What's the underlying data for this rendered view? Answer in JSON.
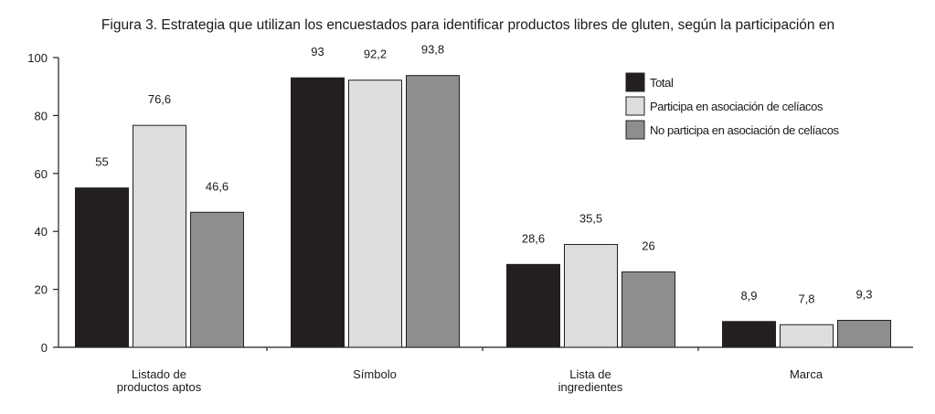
{
  "chart_data": {
    "type": "bar",
    "title": "Figura 3. Estrategia que utilizan los encuestados para identificar productos libres de gluten, según la participación en",
    "categories": [
      [
        "Listado de",
        "productos aptos"
      ],
      [
        "Símbolo"
      ],
      [
        "Lista de",
        "ingredientes"
      ],
      [
        "Marca"
      ]
    ],
    "series": [
      {
        "name": "Total",
        "color": "#231f20",
        "values": [
          55,
          93,
          28.6,
          8.9
        ],
        "labels": [
          "55",
          "93",
          "28,6",
          "8,9"
        ]
      },
      {
        "name": "Participa en asociación de celíacos",
        "color": "#dcdddf",
        "values": [
          76.6,
          92.2,
          35.5,
          7.8
        ],
        "labels": [
          "76,6",
          "92,2",
          "35,5",
          "7,8"
        ]
      },
      {
        "name": "No participa en asociación de celíacos",
        "color": "#8e8e90",
        "values": [
          46.6,
          93.8,
          26,
          9.3
        ],
        "labels": [
          "46,6",
          "93,8",
          "26",
          "9,3"
        ]
      }
    ],
    "ylim": [
      0,
      100
    ],
    "yticks": [
      "0",
      "20",
      "40",
      "60",
      "80",
      "100"
    ],
    "xlabel": "",
    "ylabel": "",
    "legend_position": "top-right",
    "grid": false
  }
}
